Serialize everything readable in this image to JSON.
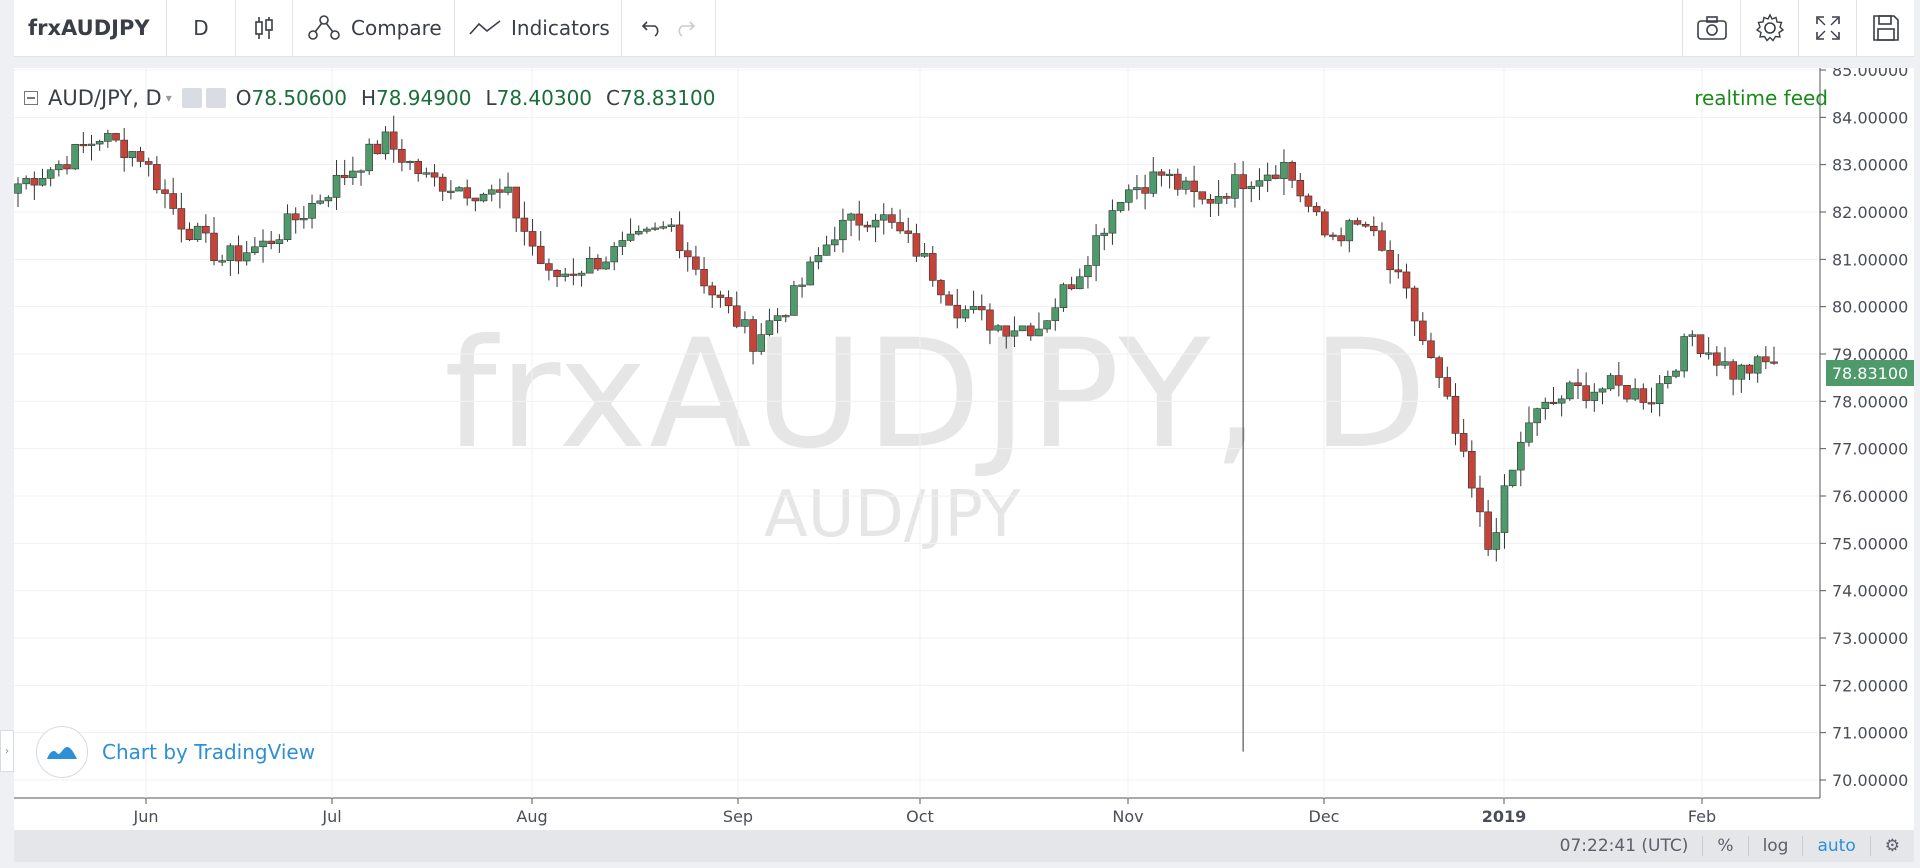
{
  "toolbar": {
    "symbol": "frxAUDJPY",
    "interval": "D",
    "compare_label": "Compare",
    "indicators_label": "Indicators"
  },
  "legend": {
    "title": "AUD/JPY, D",
    "o_label": "O",
    "o_value": "78.50600",
    "h_label": "H",
    "h_value": "78.94900",
    "l_label": "L",
    "l_value": "78.40300",
    "c_label": "C",
    "c_value": "78.83100"
  },
  "realtime": "realtime feed",
  "watermark": {
    "symbol": "frxAUDJPY, D",
    "description": "AUD/JPY"
  },
  "branding": "Chart by TradingView",
  "last_price": "78.83100",
  "status": {
    "time": "07:22:41 (UTC)",
    "percent": "%",
    "log": "log",
    "auto": "auto"
  },
  "colors": {
    "up": "#4f9a6b",
    "down": "#c4443a",
    "accent": "#2d8fd6"
  },
  "chart_data": {
    "type": "candlestick",
    "y_axis_labels": [
      "85.00000",
      "84.00000",
      "83.00000",
      "82.00000",
      "81.00000",
      "80.00000",
      "79.00000",
      "78.00000",
      "77.00000",
      "76.00000",
      "75.00000",
      "74.00000",
      "73.00000",
      "72.00000",
      "71.00000",
      "70.00000"
    ],
    "x_axis_labels": [
      "Jun",
      "Jul",
      "Aug",
      "Sep",
      "Oct",
      "Nov",
      "Dec",
      "2019",
      "Feb"
    ],
    "ylim": [
      70,
      85
    ],
    "grid": true,
    "weekly_closes": [
      82.6,
      83.0,
      83.6,
      83.2,
      81.8,
      81.0,
      81.3,
      82.0,
      82.8,
      83.5,
      82.7,
      82.5,
      82.3,
      80.6,
      80.9,
      81.3,
      81.7,
      80.3,
      79.3,
      80.2,
      81.6,
      82.0,
      81.2,
      80.0,
      79.6,
      79.6,
      80.8,
      82.4,
      82.8,
      82.2,
      82.7,
      83.0,
      81.5,
      81.7,
      80.2,
      77.9,
      74.9,
      77.6,
      78.2,
      78.3,
      78.1,
      79.4,
      78.6,
      78.83
    ]
  }
}
